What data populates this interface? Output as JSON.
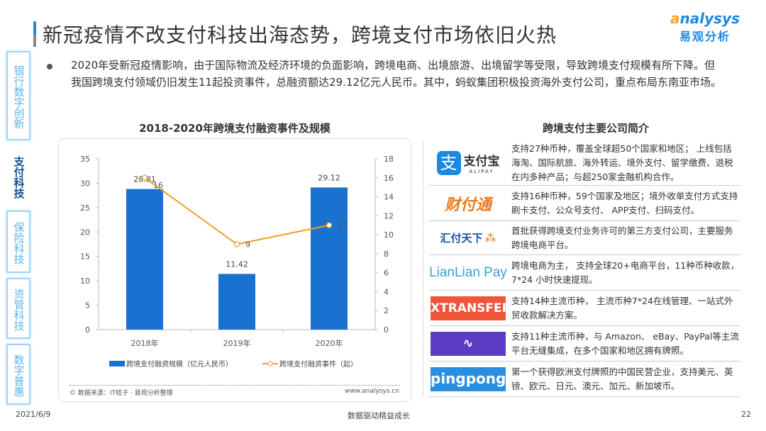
{
  "title": "新冠疫情不改支付科技出海态势，跨境支付市场依旧火热",
  "brand": {
    "en": "nalysys",
    "cn": "易观分析"
  },
  "sidebar": [
    {
      "label": "银行数字创新",
      "active": false
    },
    {
      "label": "支付科技",
      "active": true
    },
    {
      "label": "保险科技",
      "active": false
    },
    {
      "label": "资管科技",
      "active": false
    },
    {
      "label": "数字普惠",
      "active": false
    }
  ],
  "paragraph": "2020年受新冠疫情影响，由于国际物流及经济环境的负面影响，跨境电商、出境旅游、出境留学等受限，导致跨境支付规模有所下降。但我国跨境支付领域仍旧发生11起投资事件，总融资额达29.12亿元人民币。其中，蚂蚁集团积极投资海外支付公司，重点布局东南亚市场。",
  "chart_data": {
    "type": "bar+line",
    "title": "2018-2020年跨境支付融资事件及规模",
    "categories": [
      "2018年",
      "2019年",
      "2020年"
    ],
    "series": [
      {
        "name": "跨境支付融资规模（亿元人民币）",
        "type": "bar",
        "axis": "left",
        "values": [
          28.81,
          11.42,
          29.12
        ],
        "color": "#1a72d0"
      },
      {
        "name": "跨境支付融资事件（起）",
        "type": "line",
        "axis": "right",
        "values": [
          16,
          9,
          11
        ],
        "color": "#f0a020"
      }
    ],
    "ylim_left": [
      0,
      35
    ],
    "yticks_left": [
      0,
      5,
      10,
      15,
      20,
      25,
      30,
      35
    ],
    "ylim_right": [
      0,
      18
    ],
    "yticks_right": [
      0,
      2,
      4,
      6,
      8,
      10,
      12,
      14,
      16,
      18
    ],
    "grid": false,
    "legend": "bottom",
    "source": "© 数据来源：IT桔子 · 易观分析整理",
    "website": "www.analysys.cn"
  },
  "companies_title": "跨境支付主要公司简介",
  "companies": [
    {
      "logo": "支付宝",
      "logo_sub": "ALIPAY",
      "text": "支持27种币种，覆盖全球超50个国家和地区； 上线包括海淘、国际航旅、海外转运、境外支付、留学缴费、退税在内多种产品；与超250家金融机构合作。"
    },
    {
      "logo": "财付通",
      "text": "支持16种币种，59个国家及地区；境外收单支付方式支持刷卡支付、公众号支付、 APP支付、扫码支付。"
    },
    {
      "logo": "汇付天下",
      "text": "首批获得跨境支付业务许可的第三方支付公司，主要服务跨境电商平台。"
    },
    {
      "logo": "LianLian Pay",
      "text": "跨境电商为主， 支持全球20+电商平台，11种币种收款，7*24 小时快速提现。"
    },
    {
      "logo": "XTRANSFER",
      "text": "支持14种主流币种， 主流币种7*24在线管理、一站式外贸收款解决方案。"
    },
    {
      "logo": "Airwallex",
      "text": "支持11种主流币种，与 Amazon、 eBay、PayPal等主流平台无缝集成，在多个国家和地区拥有牌照。"
    },
    {
      "logo": "pingpong",
      "text": "第一个获得欧洲支付牌照的中国民营企业，支持美元、英镑、欧元、日元、澳元、加元、新加坡币。"
    }
  ],
  "footer": {
    "date": "2021/6/9",
    "center": "数据驱动精益成长",
    "page": "22"
  }
}
